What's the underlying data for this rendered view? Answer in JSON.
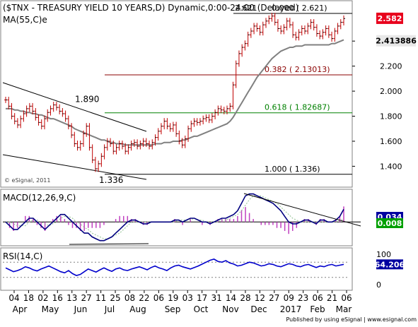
{
  "chart_data": [
    {
      "type": "candlestick",
      "title": "($TNX - TREASURY YIELD 10 YEARS,D) Dynamic,0:00-24:00 (Delayed)",
      "indicator_label": "MA(55,C)e",
      "watermark": "© eSignal, 2011",
      "ylim": [
        1.25,
        2.7
      ],
      "y_ticks": [
        "1.400",
        "1.600",
        "1.800",
        "2.000",
        "2.200",
        "2.400"
      ],
      "last_price": {
        "label": "2.582",
        "value": 2.582,
        "color": "#e8001c"
      },
      "ma_value": {
        "label": "2.413886",
        "value": 2.414
      },
      "levels": [
        {
          "label": "0.000 ( 2.621)",
          "value": 2.621,
          "color": "#000000"
        },
        {
          "label": "0.382 ( 2.13013)",
          "value": 2.13,
          "color": "#8b0000"
        },
        {
          "label": "0.618 ( 1.82687)",
          "value": 1.827,
          "color": "#008000"
        },
        {
          "label": "1.000 ( 1.336)",
          "value": 1.336,
          "color": "#000000"
        }
      ],
      "annotations": [
        {
          "label": "1.890",
          "value": 1.89
        },
        {
          "label": "1.336",
          "value": 1.336
        },
        {
          "label": "2.621",
          "value": 2.621
        }
      ],
      "price_series": [
        1.93,
        1.88,
        1.8,
        1.76,
        1.73,
        1.78,
        1.82,
        1.86,
        1.88,
        1.84,
        1.79,
        1.75,
        1.72,
        1.78,
        1.83,
        1.86,
        1.89,
        1.87,
        1.84,
        1.82,
        1.78,
        1.72,
        1.65,
        1.58,
        1.55,
        1.58,
        1.66,
        1.72,
        1.55,
        1.45,
        1.38,
        1.42,
        1.48,
        1.55,
        1.6,
        1.58,
        1.52,
        1.55,
        1.58,
        1.56,
        1.52,
        1.55,
        1.58,
        1.59,
        1.56,
        1.58,
        1.6,
        1.58,
        1.56,
        1.59,
        1.63,
        1.68,
        1.72,
        1.76,
        1.72,
        1.7,
        1.73,
        1.66,
        1.6,
        1.57,
        1.62,
        1.7,
        1.74,
        1.76,
        1.75,
        1.76,
        1.78,
        1.79,
        1.77,
        1.8,
        1.83,
        1.86,
        1.85,
        1.84,
        1.86,
        1.88,
        2.05,
        2.22,
        2.3,
        2.35,
        2.38,
        2.45,
        2.48,
        2.52,
        2.5,
        2.47,
        2.53,
        2.56,
        2.58,
        2.6,
        2.55,
        2.5,
        2.48,
        2.51,
        2.56,
        2.53,
        2.45,
        2.43,
        2.47,
        2.5,
        2.48,
        2.52,
        2.55,
        2.51,
        2.46,
        2.44,
        2.47,
        2.5,
        2.45,
        2.42,
        2.48,
        2.52,
        2.55,
        2.58
      ],
      "ma_series": [
        1.86,
        1.86,
        1.86,
        1.85,
        1.85,
        1.84,
        1.84,
        1.83,
        1.83,
        1.82,
        1.82,
        1.81,
        1.81,
        1.8,
        1.79,
        1.78,
        1.78,
        1.77,
        1.76,
        1.75,
        1.74,
        1.73,
        1.72,
        1.7,
        1.69,
        1.68,
        1.67,
        1.66,
        1.65,
        1.64,
        1.63,
        1.62,
        1.61,
        1.61,
        1.6,
        1.59,
        1.59,
        1.58,
        1.58,
        1.58,
        1.57,
        1.57,
        1.57,
        1.57,
        1.57,
        1.57,
        1.57,
        1.57,
        1.57,
        1.57,
        1.58,
        1.58,
        1.58,
        1.59,
        1.59,
        1.59,
        1.6,
        1.6,
        1.6,
        1.61,
        1.61,
        1.62,
        1.63,
        1.64,
        1.64,
        1.65,
        1.66,
        1.67,
        1.68,
        1.69,
        1.7,
        1.71,
        1.72,
        1.73,
        1.74,
        1.76,
        1.79,
        1.83,
        1.87,
        1.91,
        1.95,
        1.99,
        2.03,
        2.07,
        2.11,
        2.14,
        2.17,
        2.2,
        2.23,
        2.26,
        2.28,
        2.3,
        2.32,
        2.33,
        2.34,
        2.35,
        2.35,
        2.36,
        2.36,
        2.36,
        2.37,
        2.37,
        2.37,
        2.37,
        2.37,
        2.37,
        2.37,
        2.37,
        2.37,
        2.38,
        2.38,
        2.39,
        2.4,
        2.41
      ]
    },
    {
      "type": "line",
      "title": "MACD(12,26,9,C)",
      "ylim": [
        -0.06,
        0.08
      ],
      "macd_label": "0.034",
      "signal_label": "0.008",
      "macd_series": [
        0.0,
        -0.01,
        -0.02,
        -0.02,
        -0.01,
        0.0,
        0.01,
        0.01,
        0.0,
        -0.01,
        -0.02,
        -0.01,
        0.0,
        0.01,
        0.02,
        0.02,
        0.01,
        0.0,
        -0.01,
        -0.02,
        -0.03,
        -0.03,
        -0.04,
        -0.045,
        -0.05,
        -0.05,
        -0.045,
        -0.04,
        -0.03,
        -0.02,
        -0.01,
        0.0,
        0.005,
        0.005,
        0.0,
        -0.005,
        -0.005,
        0.0,
        0.0,
        0.0,
        0.0,
        0.0,
        0.0,
        0.005,
        0.005,
        0.0,
        0.005,
        0.01,
        0.01,
        0.005,
        0.0,
        0.0,
        -0.005,
        0.0,
        0.005,
        0.01,
        0.01,
        0.015,
        0.02,
        0.03,
        0.05,
        0.07,
        0.075,
        0.075,
        0.07,
        0.065,
        0.06,
        0.055,
        0.05,
        0.04,
        0.03,
        0.015,
        0.0,
        -0.005,
        -0.005,
        0.0,
        0.005,
        0.005,
        0.0,
        -0.005,
        0.005,
        0.005,
        0.0,
        0.0,
        0.005,
        0.015,
        0.034
      ],
      "signal_series": [
        0.0,
        0.0,
        -0.005,
        -0.01,
        -0.01,
        -0.01,
        0.0,
        0.005,
        0.005,
        0.0,
        -0.005,
        -0.01,
        -0.005,
        0.0,
        0.01,
        0.015,
        0.015,
        0.01,
        0.0,
        -0.005,
        -0.015,
        -0.02,
        -0.03,
        -0.035,
        -0.04,
        -0.045,
        -0.045,
        -0.04,
        -0.035,
        -0.03,
        -0.02,
        -0.01,
        0.0,
        0.0,
        0.0,
        0.0,
        0.0,
        0.0,
        0.0,
        0.0,
        0.0,
        0.0,
        0.0,
        0.0,
        0.005,
        0.005,
        0.005,
        0.005,
        0.01,
        0.005,
        0.005,
        0.0,
        0.0,
        0.0,
        0.0,
        0.005,
        0.005,
        0.01,
        0.015,
        0.02,
        0.03,
        0.045,
        0.06,
        0.07,
        0.07,
        0.07,
        0.065,
        0.06,
        0.055,
        0.05,
        0.04,
        0.03,
        0.02,
        0.01,
        0.005,
        0.0,
        0.0,
        0.0,
        0.0,
        0.0,
        0.0,
        0.0,
        0.0,
        0.0,
        0.0,
        0.005,
        0.008
      ]
    },
    {
      "type": "line",
      "title": "RSI(14,C)",
      "ylim": [
        0,
        100
      ],
      "y_ticks": [
        "100",
        "0"
      ],
      "last_label": "64.206",
      "rsi_series": [
        55,
        50,
        45,
        48,
        52,
        58,
        55,
        50,
        47,
        52,
        56,
        60,
        55,
        50,
        45,
        42,
        48,
        40,
        35,
        38,
        45,
        52,
        48,
        44,
        50,
        55,
        50,
        46,
        52,
        55,
        50,
        48,
        52,
        55,
        58,
        54,
        50,
        56,
        60,
        55,
        52,
        48,
        55,
        60,
        62,
        58,
        55,
        52,
        56,
        60,
        65,
        70,
        75,
        78,
        72,
        70,
        74,
        68,
        65,
        60,
        62,
        66,
        70,
        68,
        64,
        60,
        62,
        66,
        64,
        60,
        58,
        62,
        66,
        64,
        60,
        58,
        62,
        64,
        60,
        56,
        60,
        58,
        62,
        64,
        60,
        62,
        64.2
      ]
    }
  ],
  "x_axis": {
    "day_ticks": [
      "04",
      "18",
      "02",
      "16",
      "13",
      "27",
      "11",
      "25",
      "08",
      "22",
      "06",
      "19",
      "03",
      "17",
      "31",
      "14",
      "28",
      "12",
      "27",
      "09",
      "23",
      "06",
      "21",
      "06"
    ],
    "month_labels": [
      "Apr",
      "May",
      "Jun",
      "Jul",
      "Aug",
      "Sep",
      "Oct",
      "Nov",
      "Dec",
      "2017",
      "Feb",
      "Mar"
    ]
  },
  "footer": "Published by using eSignal | www.esignal.com",
  "colors": {
    "price_bars": "#c00000",
    "ma_line": "#808080",
    "macd_line": "#000080",
    "signal_line": "#90c090",
    "histogram": "#c040c0",
    "rsi_line": "#0000cc",
    "signal_box": "#00a000",
    "blue_box": "#0000a0"
  }
}
